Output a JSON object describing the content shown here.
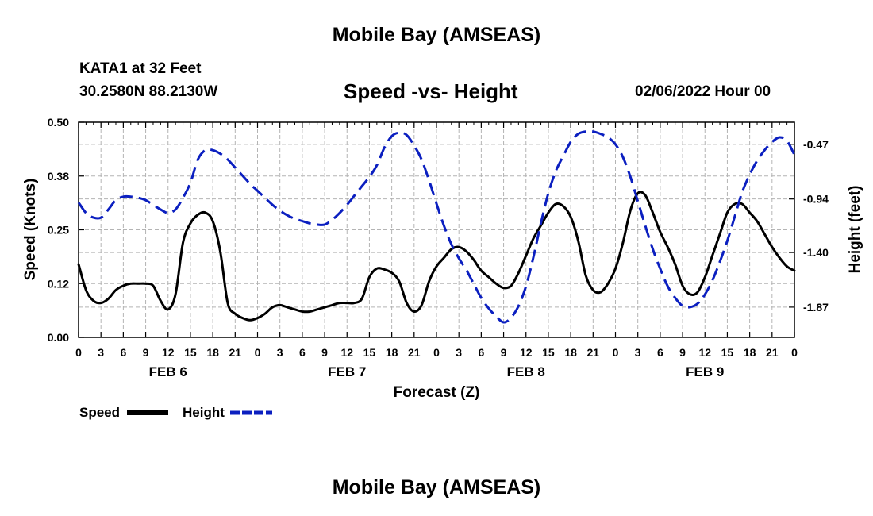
{
  "header": {
    "title": "Mobile Bay (AMSEAS)",
    "station": "KATA1 at 32 Feet",
    "coordinates": "30.2580N  88.2130W",
    "subtitle": "Speed -vs- Height",
    "datetime": "02/06/2022 Hour 00",
    "bottom_title": "Mobile Bay (AMSEAS)"
  },
  "chart_data": {
    "type": "line",
    "title": "Speed -vs- Height",
    "xlabel": "Forecast (Z)",
    "ylabel": "Speed (Knots)",
    "y2label": "Height (feet)",
    "x_tick_labels": [
      "0",
      "3",
      "6",
      "9",
      "12",
      "15",
      "18",
      "21",
      "0",
      "3",
      "6",
      "9",
      "12",
      "15",
      "18",
      "21",
      "0",
      "3",
      "6",
      "9",
      "12",
      "15",
      "18",
      "21",
      "0",
      "3",
      "6",
      "9",
      "12",
      "15",
      "18",
      "21",
      "0"
    ],
    "day_labels": [
      {
        "label": "FEB 6",
        "hour": 12
      },
      {
        "label": "FEB 7",
        "hour": 36
      },
      {
        "label": "FEB 8",
        "hour": 60
      },
      {
        "label": "FEB 9",
        "hour": 84
      }
    ],
    "xlim_hours": [
      0,
      96
    ],
    "ylim": [
      0,
      0.5
    ],
    "y_ticks": [
      "0.00",
      "0.12",
      "0.25",
      "0.38",
      "0.50"
    ],
    "y_tick_values": [
      0,
      0.125,
      0.25,
      0.375,
      0.5
    ],
    "y2lim": [
      -2.13,
      -0.28
    ],
    "y2_ticks": [
      "-0.47",
      "-0.94",
      "-1.40",
      "-1.87"
    ],
    "y2_tick_values": [
      -0.47,
      -0.94,
      -1.4,
      -1.87
    ],
    "grid": true,
    "legend_position": "bottom-left",
    "series": [
      {
        "name": "Speed",
        "axis": "left",
        "color": "#000000",
        "style": "solid",
        "points": [
          [
            0,
            0.17
          ],
          [
            1,
            0.11
          ],
          [
            2,
            0.085
          ],
          [
            3,
            0.08
          ],
          [
            4,
            0.09
          ],
          [
            5,
            0.11
          ],
          [
            6,
            0.12
          ],
          [
            7,
            0.125
          ],
          [
            8,
            0.125
          ],
          [
            9,
            0.125
          ],
          [
            10,
            0.12
          ],
          [
            11,
            0.085
          ],
          [
            12,
            0.065
          ],
          [
            13,
            0.1
          ],
          [
            14,
            0.22
          ],
          [
            15,
            0.265
          ],
          [
            16,
            0.285
          ],
          [
            17,
            0.29
          ],
          [
            18,
            0.27
          ],
          [
            19,
            0.2
          ],
          [
            20,
            0.08
          ],
          [
            21,
            0.055
          ],
          [
            22,
            0.045
          ],
          [
            23,
            0.04
          ],
          [
            24,
            0.045
          ],
          [
            25,
            0.055
          ],
          [
            26,
            0.07
          ],
          [
            27,
            0.075
          ],
          [
            28,
            0.07
          ],
          [
            29,
            0.065
          ],
          [
            30,
            0.06
          ],
          [
            31,
            0.06
          ],
          [
            32,
            0.065
          ],
          [
            33,
            0.07
          ],
          [
            34,
            0.075
          ],
          [
            35,
            0.08
          ],
          [
            36,
            0.08
          ],
          [
            37,
            0.08
          ],
          [
            38,
            0.09
          ],
          [
            39,
            0.14
          ],
          [
            40,
            0.16
          ],
          [
            41,
            0.158
          ],
          [
            42,
            0.15
          ],
          [
            43,
            0.13
          ],
          [
            44,
            0.08
          ],
          [
            45,
            0.06
          ],
          [
            46,
            0.075
          ],
          [
            47,
            0.13
          ],
          [
            48,
            0.165
          ],
          [
            49,
            0.185
          ],
          [
            50,
            0.205
          ],
          [
            51,
            0.21
          ],
          [
            52,
            0.2
          ],
          [
            53,
            0.18
          ],
          [
            54,
            0.155
          ],
          [
            55,
            0.14
          ],
          [
            56,
            0.125
          ],
          [
            57,
            0.115
          ],
          [
            58,
            0.12
          ],
          [
            59,
            0.15
          ],
          [
            60,
            0.19
          ],
          [
            61,
            0.23
          ],
          [
            62,
            0.26
          ],
          [
            63,
            0.29
          ],
          [
            64,
            0.31
          ],
          [
            65,
            0.305
          ],
          [
            66,
            0.28
          ],
          [
            67,
            0.225
          ],
          [
            68,
            0.145
          ],
          [
            69,
            0.11
          ],
          [
            70,
            0.105
          ],
          [
            71,
            0.125
          ],
          [
            72,
            0.16
          ],
          [
            73,
            0.22
          ],
          [
            74,
            0.295
          ],
          [
            75,
            0.335
          ],
          [
            76,
            0.33
          ],
          [
            77,
            0.29
          ],
          [
            78,
            0.245
          ],
          [
            79,
            0.21
          ],
          [
            80,
            0.17
          ],
          [
            81,
            0.12
          ],
          [
            82,
            0.1
          ],
          [
            83,
            0.105
          ],
          [
            84,
            0.14
          ],
          [
            85,
            0.19
          ],
          [
            86,
            0.24
          ],
          [
            87,
            0.29
          ],
          [
            88,
            0.31
          ],
          [
            89,
            0.31
          ],
          [
            90,
            0.29
          ],
          [
            91,
            0.27
          ],
          [
            92,
            0.24
          ],
          [
            93,
            0.21
          ],
          [
            94,
            0.185
          ],
          [
            95,
            0.165
          ],
          [
            96,
            0.155
          ]
        ]
      },
      {
        "name": "Height",
        "axis": "right",
        "color": "#0b1fc0",
        "style": "dashed",
        "points": [
          [
            0,
            -0.97
          ],
          [
            1,
            -1.06
          ],
          [
            2,
            -1.1
          ],
          [
            3,
            -1.1
          ],
          [
            4,
            -1.03
          ],
          [
            5,
            -0.95
          ],
          [
            6,
            -0.92
          ],
          [
            7,
            -0.92
          ],
          [
            8,
            -0.93
          ],
          [
            9,
            -0.95
          ],
          [
            10,
            -0.99
          ],
          [
            11,
            -1.03
          ],
          [
            12,
            -1.06
          ],
          [
            13,
            -1.03
          ],
          [
            14,
            -0.93
          ],
          [
            15,
            -0.8
          ],
          [
            16,
            -0.6
          ],
          [
            17,
            -0.52
          ],
          [
            18,
            -0.52
          ],
          [
            19,
            -0.55
          ],
          [
            20,
            -0.6
          ],
          [
            21,
            -0.67
          ],
          [
            22,
            -0.74
          ],
          [
            23,
            -0.81
          ],
          [
            24,
            -0.87
          ],
          [
            25,
            -0.93
          ],
          [
            26,
            -0.99
          ],
          [
            27,
            -1.04
          ],
          [
            28,
            -1.08
          ],
          [
            29,
            -1.11
          ],
          [
            30,
            -1.13
          ],
          [
            31,
            -1.15
          ],
          [
            32,
            -1.16
          ],
          [
            33,
            -1.16
          ],
          [
            34,
            -1.12
          ],
          [
            35,
            -1.06
          ],
          [
            36,
            -0.99
          ],
          [
            37,
            -0.91
          ],
          [
            38,
            -0.83
          ],
          [
            39,
            -0.75
          ],
          [
            40,
            -0.65
          ],
          [
            41,
            -0.5
          ],
          [
            42,
            -0.4
          ],
          [
            43,
            -0.37
          ],
          [
            44,
            -0.39
          ],
          [
            45,
            -0.48
          ],
          [
            46,
            -0.6
          ],
          [
            47,
            -0.78
          ],
          [
            48,
            -0.98
          ],
          [
            49,
            -1.17
          ],
          [
            50,
            -1.33
          ],
          [
            51,
            -1.45
          ],
          [
            52,
            -1.55
          ],
          [
            53,
            -1.67
          ],
          [
            54,
            -1.79
          ],
          [
            55,
            -1.88
          ],
          [
            56,
            -1.95
          ],
          [
            57,
            -2.0
          ],
          [
            58,
            -1.96
          ],
          [
            59,
            -1.86
          ],
          [
            60,
            -1.69
          ],
          [
            61,
            -1.44
          ],
          [
            62,
            -1.15
          ],
          [
            63,
            -0.89
          ],
          [
            64,
            -0.7
          ],
          [
            65,
            -0.57
          ],
          [
            66,
            -0.45
          ],
          [
            67,
            -0.38
          ],
          [
            68,
            -0.36
          ],
          [
            69,
            -0.36
          ],
          [
            70,
            -0.38
          ],
          [
            71,
            -0.41
          ],
          [
            72,
            -0.47
          ],
          [
            73,
            -0.58
          ],
          [
            74,
            -0.75
          ],
          [
            75,
            -0.96
          ],
          [
            76,
            -1.17
          ],
          [
            77,
            -1.37
          ],
          [
            78,
            -1.54
          ],
          [
            79,
            -1.69
          ],
          [
            80,
            -1.79
          ],
          [
            81,
            -1.86
          ],
          [
            82,
            -1.87
          ],
          [
            83,
            -1.84
          ],
          [
            84,
            -1.76
          ],
          [
            85,
            -1.64
          ],
          [
            86,
            -1.48
          ],
          [
            87,
            -1.3
          ],
          [
            88,
            -1.09
          ],
          [
            89,
            -0.88
          ],
          [
            90,
            -0.73
          ],
          [
            91,
            -0.61
          ],
          [
            92,
            -0.52
          ],
          [
            93,
            -0.45
          ],
          [
            94,
            -0.41
          ],
          [
            95,
            -0.44
          ],
          [
            96,
            -0.56
          ]
        ]
      }
    ]
  }
}
